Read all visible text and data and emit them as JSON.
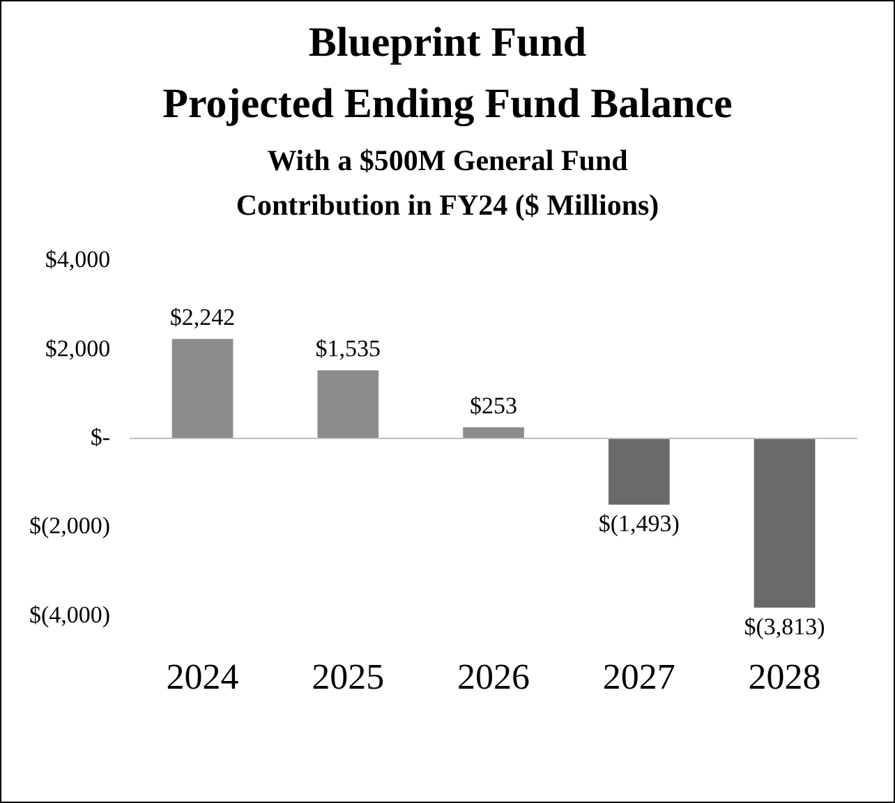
{
  "chart_data": {
    "type": "bar",
    "title": "Blueprint Fund\nProjected Ending Fund Balance",
    "subtitle": "With a $500M General Fund\nContribution in FY24 ($ Millions)",
    "categories": [
      "2024",
      "2025",
      "2026",
      "2027",
      "2028"
    ],
    "values": [
      2242,
      1535,
      253,
      -1493,
      -3813
    ],
    "colors": [
      "#8c8c8c",
      "#8c8c8c",
      "#8c8c8c",
      "#6a6a6a",
      "#6a6a6a"
    ],
    "value_labels": [
      "$2,242",
      "$1,535",
      "$253",
      "$(1,493)",
      "$(3,813)"
    ],
    "ylim": [
      -4000,
      4000
    ],
    "yticks": [
      {
        "value": -4000,
        "label": "$(4,000)"
      },
      {
        "value": -2000,
        "label": "$(2,000)"
      },
      {
        "value": 0,
        "label": "$-"
      },
      {
        "value": 2000,
        "label": "$2,000"
      },
      {
        "value": 4000,
        "label": "$4,000"
      }
    ],
    "legend": false
  }
}
